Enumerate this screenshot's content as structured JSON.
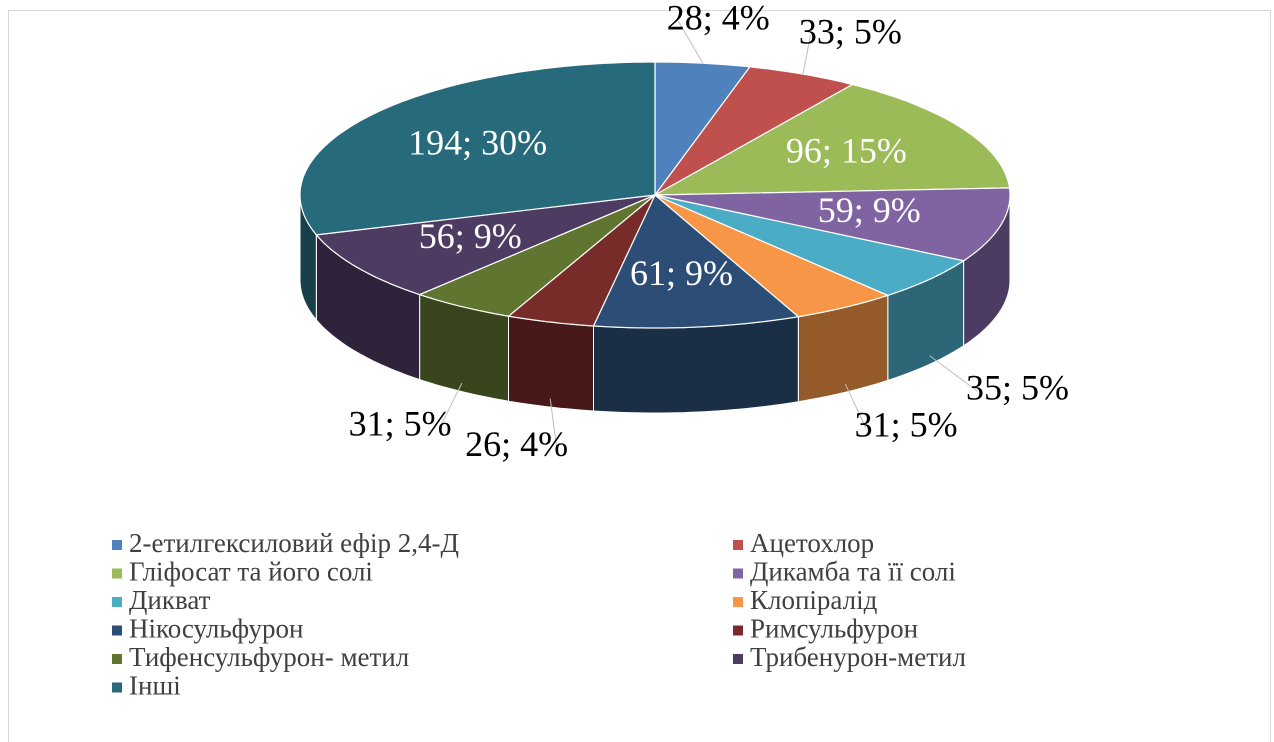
{
  "chart_data": {
    "type": "pie3d",
    "categories": [
      "2-етилгексиловий ефір 2,4-Д",
      "Ацетохлор",
      "Гліфосат та його солі",
      "Дикамба та її солі",
      "Дикват",
      "Клопіралід",
      "Нікосульфурон",
      "Римсульфурон",
      "Тифенсульфурон- метил",
      "Трибенурон-метил",
      "Інші"
    ],
    "values": [
      28,
      33,
      96,
      59,
      35,
      31,
      61,
      26,
      31,
      56,
      194
    ],
    "value_labels": [
      "28; 4%",
      "33; 5%",
      "96; 15%",
      "59; 9%",
      "35; 5%",
      "31; 5%",
      "61; 9%",
      "26; 4%",
      "31; 5%",
      "56; 9%",
      "194; 30%"
    ],
    "colors": [
      "#4f81bd",
      "#c0504d",
      "#9bbb59",
      "#8064a2",
      "#4bacc6",
      "#f79646",
      "#2c4d75",
      "#772c2a",
      "#5f7530",
      "#4d3b62",
      "#276a7c"
    ],
    "legend": "bottom"
  }
}
